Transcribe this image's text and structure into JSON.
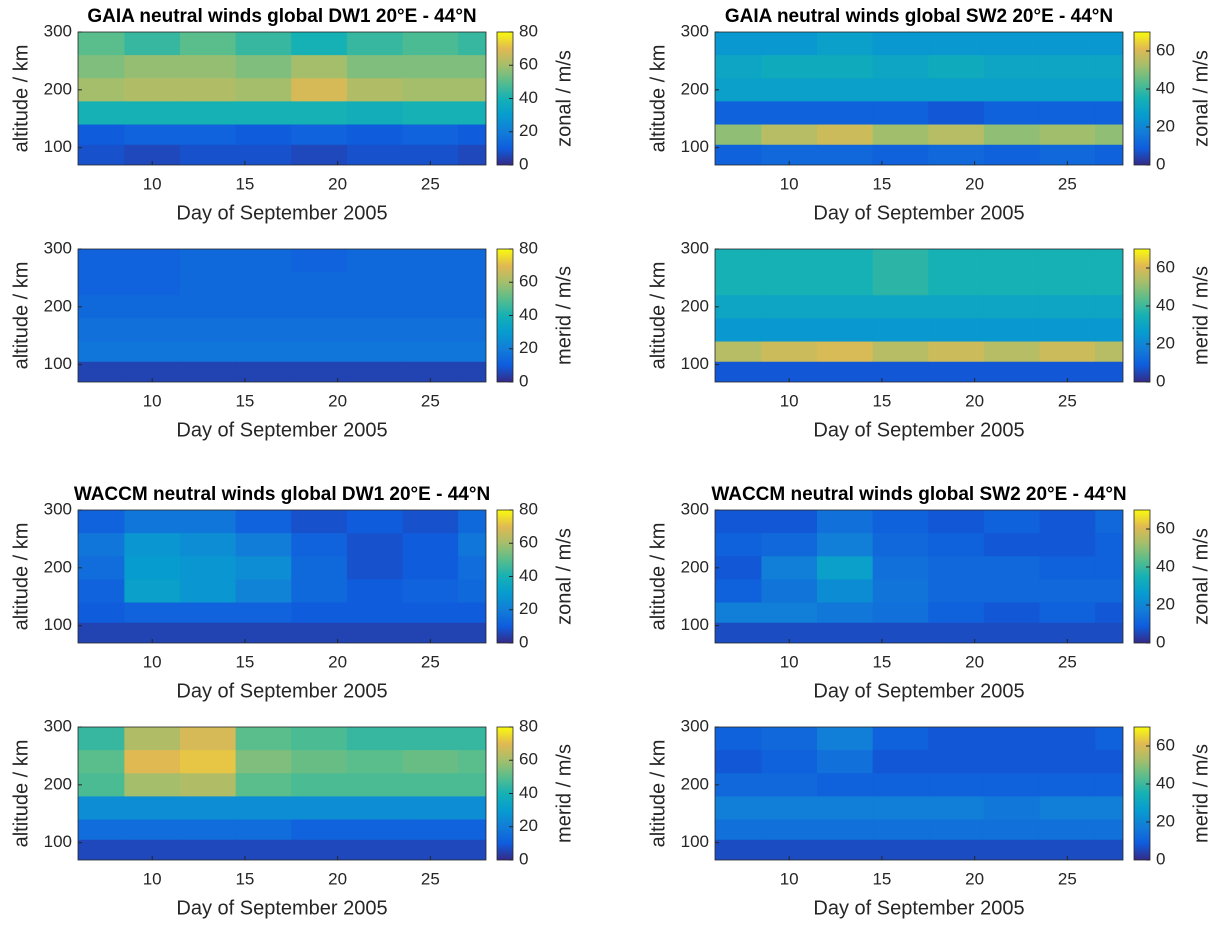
{
  "chart_data": [
    {
      "type": "heatmap",
      "title": "GAIA neutral winds global DW1 20°E - 44°N",
      "xlabel": "Day of September 2005",
      "ylabel": "altitude / km",
      "colorbar_label": "zonal / m/s",
      "x": [
        7,
        10,
        13,
        16,
        19,
        22,
        25,
        28
      ],
      "y": [
        280,
        240,
        200,
        160,
        120,
        90
      ],
      "z": [
        [
          50,
          45,
          50,
          45,
          40,
          45,
          48,
          45
        ],
        [
          55,
          58,
          58,
          55,
          60,
          55,
          55,
          55
        ],
        [
          60,
          62,
          62,
          60,
          68,
          62,
          60,
          60
        ],
        [
          40,
          40,
          40,
          40,
          40,
          38,
          40,
          40
        ],
        [
          10,
          12,
          12,
          10,
          12,
          10,
          12,
          10
        ],
        [
          8,
          6,
          8,
          8,
          6,
          8,
          8,
          6
        ]
      ],
      "xlim": [
        6,
        28
      ],
      "ylim": [
        70,
        300
      ],
      "xticks": [
        10,
        15,
        20,
        25
      ],
      "yticks": [
        100,
        200,
        300
      ],
      "clim": [
        0,
        80
      ],
      "cticks": [
        0,
        20,
        40,
        60,
        80
      ]
    },
    {
      "type": "heatmap",
      "title": "GAIA neutral winds global SW2 20°E - 44°N",
      "xlabel": "Day of September 2005",
      "ylabel": "altitude / km",
      "colorbar_label": "zonal / m/s",
      "x": [
        7,
        10,
        13,
        16,
        19,
        22,
        25,
        28
      ],
      "y": [
        280,
        240,
        200,
        160,
        120,
        90
      ],
      "z": [
        [
          25,
          25,
          28,
          25,
          25,
          25,
          25,
          25
        ],
        [
          30,
          32,
          32,
          30,
          32,
          30,
          30,
          30
        ],
        [
          28,
          28,
          28,
          28,
          28,
          28,
          28,
          28
        ],
        [
          10,
          10,
          10,
          10,
          8,
          10,
          10,
          10
        ],
        [
          50,
          55,
          58,
          52,
          55,
          50,
          52,
          50
        ],
        [
          10,
          12,
          12,
          10,
          12,
          10,
          12,
          10
        ]
      ],
      "xlim": [
        6,
        28
      ],
      "ylim": [
        70,
        300
      ],
      "xticks": [
        10,
        15,
        20,
        25
      ],
      "yticks": [
        100,
        200,
        300
      ],
      "clim": [
        0,
        70
      ],
      "cticks": [
        0,
        20,
        40,
        60
      ]
    },
    {
      "type": "heatmap",
      "xlabel": "Day of September 2005",
      "ylabel": "altitude / km",
      "colorbar_label": "merid / m/s",
      "x": [
        7,
        10,
        13,
        16,
        19,
        22,
        25,
        28
      ],
      "y": [
        280,
        240,
        200,
        160,
        120,
        90
      ],
      "z": [
        [
          12,
          12,
          14,
          14,
          12,
          14,
          14,
          14
        ],
        [
          12,
          12,
          14,
          14,
          14,
          14,
          14,
          14
        ],
        [
          14,
          14,
          14,
          14,
          14,
          14,
          14,
          14
        ],
        [
          16,
          16,
          16,
          16,
          16,
          16,
          16,
          16
        ],
        [
          18,
          18,
          18,
          18,
          18,
          18,
          18,
          18
        ],
        [
          5,
          5,
          5,
          5,
          5,
          5,
          5,
          5
        ]
      ],
      "xlim": [
        6,
        28
      ],
      "ylim": [
        70,
        300
      ],
      "xticks": [
        10,
        15,
        20,
        25
      ],
      "yticks": [
        100,
        200,
        300
      ],
      "clim": [
        0,
        80
      ],
      "cticks": [
        0,
        20,
        40,
        60,
        80
      ]
    },
    {
      "type": "heatmap",
      "xlabel": "Day of September 2005",
      "ylabel": "altitude / km",
      "colorbar_label": "merid / m/s",
      "x": [
        7,
        10,
        13,
        16,
        19,
        22,
        25,
        28
      ],
      "y": [
        280,
        240,
        200,
        160,
        120,
        90
      ],
      "z": [
        [
          35,
          35,
          35,
          38,
          35,
          35,
          35,
          35
        ],
        [
          35,
          35,
          35,
          38,
          35,
          35,
          35,
          35
        ],
        [
          30,
          30,
          30,
          30,
          30,
          30,
          30,
          30
        ],
        [
          25,
          25,
          25,
          25,
          25,
          25,
          25,
          25
        ],
        [
          55,
          58,
          60,
          55,
          58,
          55,
          58,
          55
        ],
        [
          8,
          8,
          8,
          8,
          8,
          8,
          8,
          8
        ]
      ],
      "xlim": [
        6,
        28
      ],
      "ylim": [
        70,
        300
      ],
      "xticks": [
        10,
        15,
        20,
        25
      ],
      "yticks": [
        100,
        200,
        300
      ],
      "clim": [
        0,
        70
      ],
      "cticks": [
        0,
        20,
        40,
        60
      ]
    },
    {
      "type": "heatmap",
      "title": "WACCM neutral winds global DW1 20°E - 44°N",
      "xlabel": "Day of September 2005",
      "ylabel": "altitude / km",
      "colorbar_label": "zonal / m/s",
      "x": [
        7,
        10,
        13,
        16,
        19,
        22,
        25,
        28
      ],
      "y": [
        280,
        240,
        200,
        160,
        120,
        90
      ],
      "z": [
        [
          12,
          18,
          18,
          12,
          8,
          10,
          8,
          14
        ],
        [
          18,
          28,
          25,
          20,
          12,
          8,
          10,
          18
        ],
        [
          15,
          30,
          28,
          25,
          14,
          8,
          10,
          15
        ],
        [
          12,
          32,
          28,
          22,
          14,
          10,
          12,
          14
        ],
        [
          10,
          12,
          12,
          12,
          10,
          10,
          10,
          10
        ],
        [
          5,
          5,
          5,
          5,
          5,
          5,
          5,
          5
        ]
      ],
      "xlim": [
        6,
        28
      ],
      "ylim": [
        70,
        300
      ],
      "xticks": [
        10,
        15,
        20,
        25
      ],
      "yticks": [
        100,
        200,
        300
      ],
      "clim": [
        0,
        80
      ],
      "cticks": [
        0,
        20,
        40,
        60,
        80
      ]
    },
    {
      "type": "heatmap",
      "title": "WACCM neutral winds global SW2 20°E - 44°N",
      "xlabel": "Day of September 2005",
      "ylabel": "altitude / km",
      "colorbar_label": "zonal / m/s",
      "x": [
        7,
        10,
        13,
        16,
        19,
        22,
        25,
        28
      ],
      "y": [
        280,
        240,
        200,
        160,
        120,
        90
      ],
      "z": [
        [
          8,
          8,
          14,
          10,
          8,
          10,
          8,
          12
        ],
        [
          10,
          12,
          18,
          12,
          10,
          8,
          8,
          10
        ],
        [
          8,
          18,
          28,
          14,
          12,
          12,
          10,
          10
        ],
        [
          10,
          15,
          22,
          15,
          12,
          12,
          12,
          12
        ],
        [
          18,
          18,
          16,
          14,
          10,
          8,
          10,
          8
        ],
        [
          6,
          6,
          6,
          6,
          6,
          6,
          6,
          6
        ]
      ],
      "xlim": [
        6,
        28
      ],
      "ylim": [
        70,
        300
      ],
      "xticks": [
        10,
        15,
        20,
        25
      ],
      "yticks": [
        100,
        200,
        300
      ],
      "clim": [
        0,
        70
      ],
      "cticks": [
        0,
        20,
        40,
        60
      ]
    },
    {
      "type": "heatmap",
      "xlabel": "Day of September 2005",
      "ylabel": "altitude / km",
      "colorbar_label": "merid / m/s",
      "x": [
        7,
        10,
        13,
        16,
        19,
        22,
        25,
        28
      ],
      "y": [
        280,
        240,
        200,
        160,
        120,
        90
      ],
      "z": [
        [
          45,
          62,
          68,
          50,
          48,
          45,
          45,
          45
        ],
        [
          50,
          70,
          72,
          55,
          52,
          50,
          52,
          50
        ],
        [
          48,
          60,
          62,
          50,
          48,
          48,
          48,
          48
        ],
        [
          25,
          25,
          25,
          25,
          25,
          25,
          25,
          25
        ],
        [
          15,
          15,
          15,
          15,
          12,
          12,
          12,
          12
        ],
        [
          6,
          6,
          6,
          6,
          6,
          6,
          6,
          6
        ]
      ],
      "xlim": [
        6,
        28
      ],
      "ylim": [
        70,
        300
      ],
      "xticks": [
        10,
        15,
        20,
        25
      ],
      "yticks": [
        100,
        200,
        300
      ],
      "clim": [
        0,
        80
      ],
      "cticks": [
        0,
        20,
        40,
        60,
        80
      ]
    },
    {
      "type": "heatmap",
      "xlabel": "Day of September 2005",
      "ylabel": "altitude / km",
      "colorbar_label": "merid / m/s",
      "x": [
        7,
        10,
        13,
        16,
        19,
        22,
        25,
        28
      ],
      "y": [
        280,
        240,
        200,
        160,
        120,
        90
      ],
      "z": [
        [
          10,
          12,
          18,
          10,
          8,
          8,
          8,
          10
        ],
        [
          8,
          10,
          14,
          8,
          8,
          8,
          8,
          8
        ],
        [
          12,
          12,
          10,
          10,
          10,
          10,
          10,
          10
        ],
        [
          18,
          18,
          18,
          18,
          18,
          16,
          18,
          18
        ],
        [
          14,
          14,
          14,
          14,
          14,
          14,
          14,
          14
        ],
        [
          6,
          6,
          6,
          6,
          6,
          6,
          6,
          6
        ]
      ],
      "xlim": [
        6,
        28
      ],
      "ylim": [
        70,
        300
      ],
      "xticks": [
        10,
        15,
        20,
        25
      ],
      "yticks": [
        100,
        200,
        300
      ],
      "clim": [
        0,
        70
      ],
      "cticks": [
        0,
        20,
        40,
        60
      ]
    }
  ]
}
